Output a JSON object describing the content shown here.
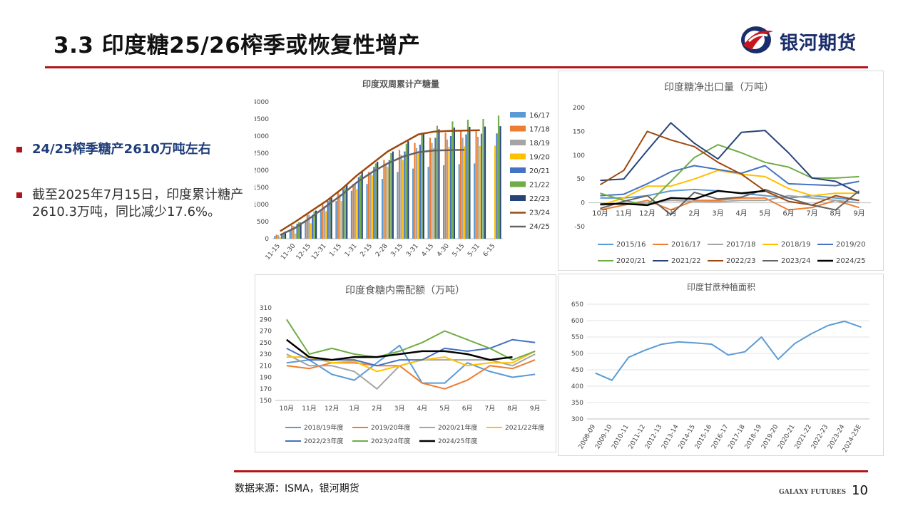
{
  "header": {
    "title": "3.3 印度糖25/26榨季或恢复性增产",
    "brand_name": "银河期货"
  },
  "bullets": [
    "24/25榨季糖产2610万吨左右",
    "截至2025年7月15日，印度累计糖产2610.3万吨，同比减少17.6%。"
  ],
  "footer": {
    "source": "数据来源：ISMA，银河期货",
    "brand": "GALAXY FUTURES",
    "page_number": "10"
  },
  "colors": {
    "accent": "#b2161c",
    "brand_blue": "#1a2d6b"
  },
  "chart_data": [
    {
      "type": "bar",
      "title": "印度双周累计产糖量",
      "categories": [
        "11-15",
        "11-30",
        "12-15",
        "12-31",
        "1-15",
        "1-31",
        "2-15",
        "2-28",
        "3-15",
        "3-31",
        "4-15",
        "4-30",
        "5-15",
        "5-31",
        "6-15"
      ],
      "ylim": [
        0,
        4000
      ],
      "yticks": [
        0,
        500,
        1000,
        1500,
        2000,
        2500,
        3000,
        3500,
        4000
      ],
      "legend": "right",
      "series": [
        {
          "name": "16/17",
          "kind": "bar",
          "color": "#5b9bd5",
          "values": [
            80,
            250,
            500,
            800,
            1100,
            1400,
            1600,
            1750,
            1950,
            2050,
            2100,
            2150,
            2180,
            2200,
            null
          ]
        },
        {
          "name": "17/18",
          "kind": "bar",
          "color": "#ed7d31",
          "values": [
            120,
            390,
            700,
            1000,
            1350,
            1600,
            1950,
            2300,
            2600,
            2800,
            2950,
            3100,
            3150,
            3170,
            null
          ]
        },
        {
          "name": "18/19",
          "kind": "bar",
          "color": "#a5a5a5",
          "values": [
            100,
            370,
            700,
            950,
            1300,
            1600,
            1900,
            2200,
            2450,
            2650,
            2800,
            2900,
            2950,
            2980,
            null
          ]
        },
        {
          "name": "19/20",
          "kind": "bar",
          "color": "#ffc000",
          "values": [
            50,
            150,
            450,
            800,
            1100,
            1450,
            1850,
            2100,
            2300,
            2550,
            2650,
            2690,
            2700,
            2710,
            2720
          ]
        },
        {
          "name": "20/21",
          "kind": "bar",
          "color": "#4472c4",
          "values": [
            140,
            440,
            700,
            1100,
            1450,
            1800,
            2100,
            2300,
            2550,
            2750,
            2950,
            3000,
            3050,
            3070,
            3080
          ]
        },
        {
          "name": "21/22",
          "kind": "bar",
          "color": "#70ad47",
          "values": [
            150,
            480,
            800,
            1200,
            1500,
            1850,
            2200,
            2500,
            2780,
            3100,
            3300,
            3430,
            3480,
            3500,
            3600
          ]
        },
        {
          "name": "22/23",
          "kind": "bar",
          "color": "#264478",
          "values": [
            210,
            470,
            820,
            1200,
            1600,
            1950,
            2250,
            2550,
            2850,
            3100,
            3200,
            3250,
            3270,
            3280,
            3290
          ]
        },
        {
          "name": "23/24",
          "kind": "line",
          "color": "#9e480e",
          "values": [
            220,
            500,
            800,
            1100,
            1450,
            1850,
            2200,
            2550,
            2800,
            3050,
            3130,
            3150,
            3160,
            3170,
            null
          ]
        },
        {
          "name": "24/25",
          "kind": "line",
          "color": "#636363",
          "values": [
            110,
            320,
            620,
            950,
            1280,
            1650,
            1950,
            2200,
            2400,
            2530,
            2580,
            2590,
            2600,
            null,
            null
          ]
        }
      ]
    },
    {
      "type": "line",
      "title": "印度糖净出口量（万吨）",
      "categories": [
        "10月",
        "11月",
        "12月",
        "1月",
        "2月",
        "3月",
        "4月",
        "5月",
        "6月",
        "7月",
        "8月",
        "9月"
      ],
      "ylim": [
        -50,
        200
      ],
      "yticks": [
        -50,
        0,
        50,
        100,
        150,
        200
      ],
      "legend": "bottom",
      "series": [
        {
          "name": "2015/16",
          "color": "#5b9bd5",
          "values": [
            10,
            10,
            15,
            25,
            28,
            25,
            20,
            15,
            10,
            15,
            10,
            5
          ]
        },
        {
          "name": "2016/17",
          "color": "#ed7d31",
          "values": [
            -15,
            -5,
            5,
            -15,
            5,
            5,
            10,
            10,
            -15,
            -10,
            5,
            -10
          ]
        },
        {
          "name": "2017/18",
          "color": "#a5a5a5",
          "values": [
            -5,
            -2,
            0,
            5,
            3,
            2,
            5,
            5,
            15,
            10,
            5,
            0
          ]
        },
        {
          "name": "2018/19",
          "color": "#ffc000",
          "values": [
            -5,
            10,
            35,
            35,
            50,
            68,
            60,
            55,
            30,
            15,
            20,
            20
          ]
        },
        {
          "name": "2019/20",
          "color": "#4472c4",
          "values": [
            15,
            18,
            40,
            65,
            78,
            70,
            62,
            78,
            40,
            38,
            36,
            45
          ]
        },
        {
          "name": "2020/21",
          "color": "#70ad47",
          "values": [
            20,
            5,
            -5,
            45,
            95,
            122,
            105,
            85,
            75,
            52,
            52,
            55
          ]
        },
        {
          "name": "2021/22",
          "color": "#264478",
          "values": [
            47,
            50,
            110,
            168,
            125,
            92,
            148,
            152,
            105,
            52,
            45,
            20
          ]
        },
        {
          "name": "2022/23",
          "color": "#9e480e",
          "values": [
            38,
            68,
            150,
            132,
            118,
            85,
            60,
            25,
            3,
            -5,
            15,
            5
          ]
        },
        {
          "name": "2023/24",
          "color": "#636363",
          "values": [
            -12,
            3,
            15,
            -25,
            22,
            8,
            12,
            28,
            10,
            -5,
            -15,
            25
          ]
        },
        {
          "name": "2024/25",
          "color": "#000000",
          "values": [
            -3,
            -2,
            -5,
            10,
            8,
            25,
            20,
            25,
            null,
            null,
            null,
            null
          ]
        }
      ]
    },
    {
      "type": "line",
      "title": "印度食糖内需配额（万吨）",
      "categories": [
        "10月",
        "11月",
        "12月",
        "1月",
        "2月",
        "3月",
        "4月",
        "5月",
        "6月",
        "7月",
        "8月",
        "9月"
      ],
      "ylim": [
        150,
        310
      ],
      "yticks": [
        150,
        170,
        190,
        210,
        230,
        250,
        270,
        290,
        310
      ],
      "legend": "bottom",
      "series": [
        {
          "name": "2018/19年度",
          "color": "#5b9bd5",
          "values": [
            215,
            220,
            195,
            185,
            215,
            245,
            180,
            180,
            215,
            200,
            190,
            195
          ]
        },
        {
          "name": "2019/20年度",
          "color": "#ed7d31",
          "values": [
            210,
            205,
            215,
            215,
            210,
            210,
            180,
            170,
            185,
            210,
            205,
            220
          ]
        },
        {
          "name": "2020/21年度",
          "color": "#a5a5a5",
          "values": [
            230,
            210,
            210,
            200,
            170,
            210,
            220,
            220,
            220,
            220,
            210,
            230
          ]
        },
        {
          "name": "2021/22年度",
          "color": "#ffc000",
          "values": [
            225,
            225,
            215,
            218,
            200,
            210,
            220,
            225,
            210,
            215,
            215,
            235
          ]
        },
        {
          "name": "2022/23年度",
          "color": "#4472c4",
          "values": [
            240,
            220,
            220,
            220,
            210,
            220,
            220,
            240,
            235,
            240,
            255,
            250
          ]
        },
        {
          "name": "2023/24年度",
          "color": "#70ad47",
          "values": [
            290,
            230,
            240,
            230,
            225,
            235,
            250,
            270,
            255,
            240,
            220,
            235
          ]
        },
        {
          "name": "2024/25年度",
          "color": "#000000",
          "values": [
            255,
            225,
            220,
            225,
            225,
            230,
            235,
            235,
            230,
            220,
            225,
            null
          ]
        }
      ]
    },
    {
      "type": "line",
      "title": "印度甘蔗种植面积",
      "categories": [
        "2008-09",
        "2009-10",
        "2010-11",
        "2011-12",
        "2012-13",
        "2013-14",
        "2014-15",
        "2015-16",
        "2016-17",
        "2017-18",
        "2018-19",
        "2019-20",
        "2020-21",
        "2021-22",
        "2022-23",
        "2023-24",
        "2024-25E"
      ],
      "ylim": [
        300,
        650
      ],
      "yticks": [
        300,
        350,
        400,
        450,
        500,
        550,
        600,
        650
      ],
      "series": [
        {
          "color": "#5b9bd5",
          "values": [
            440,
            418,
            488,
            510,
            528,
            535,
            532,
            528,
            495,
            505,
            550,
            482,
            530,
            560,
            585,
            598,
            580
          ]
        }
      ]
    }
  ]
}
